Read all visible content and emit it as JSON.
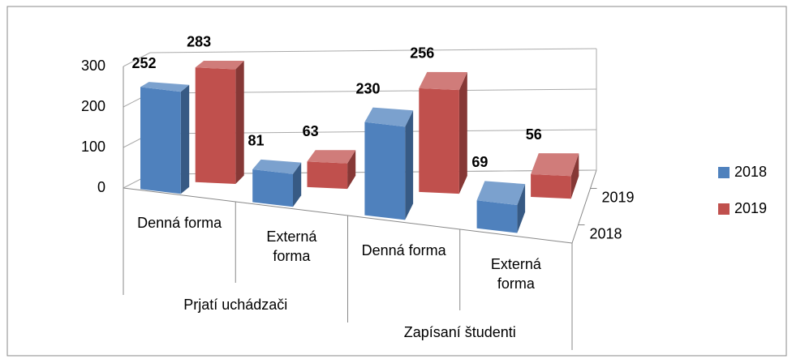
{
  "chart_data": {
    "type": "bar3d",
    "categories": [
      "Denná forma",
      "Externá forma",
      "Denná forma",
      "Externá forma"
    ],
    "category_groups": [
      "Prjatí uchádzači",
      "Zapísaní študenti"
    ],
    "series": [
      {
        "name": "2018",
        "color": "#4f81bd",
        "values": [
          252,
          81,
          230,
          69
        ]
      },
      {
        "name": "2019",
        "color": "#c0504d",
        "values": [
          283,
          63,
          256,
          56
        ]
      }
    ],
    "ylim": [
      0,
      300
    ],
    "yticks": [
      0,
      100,
      200,
      300
    ],
    "grid": true,
    "legend": "right"
  }
}
